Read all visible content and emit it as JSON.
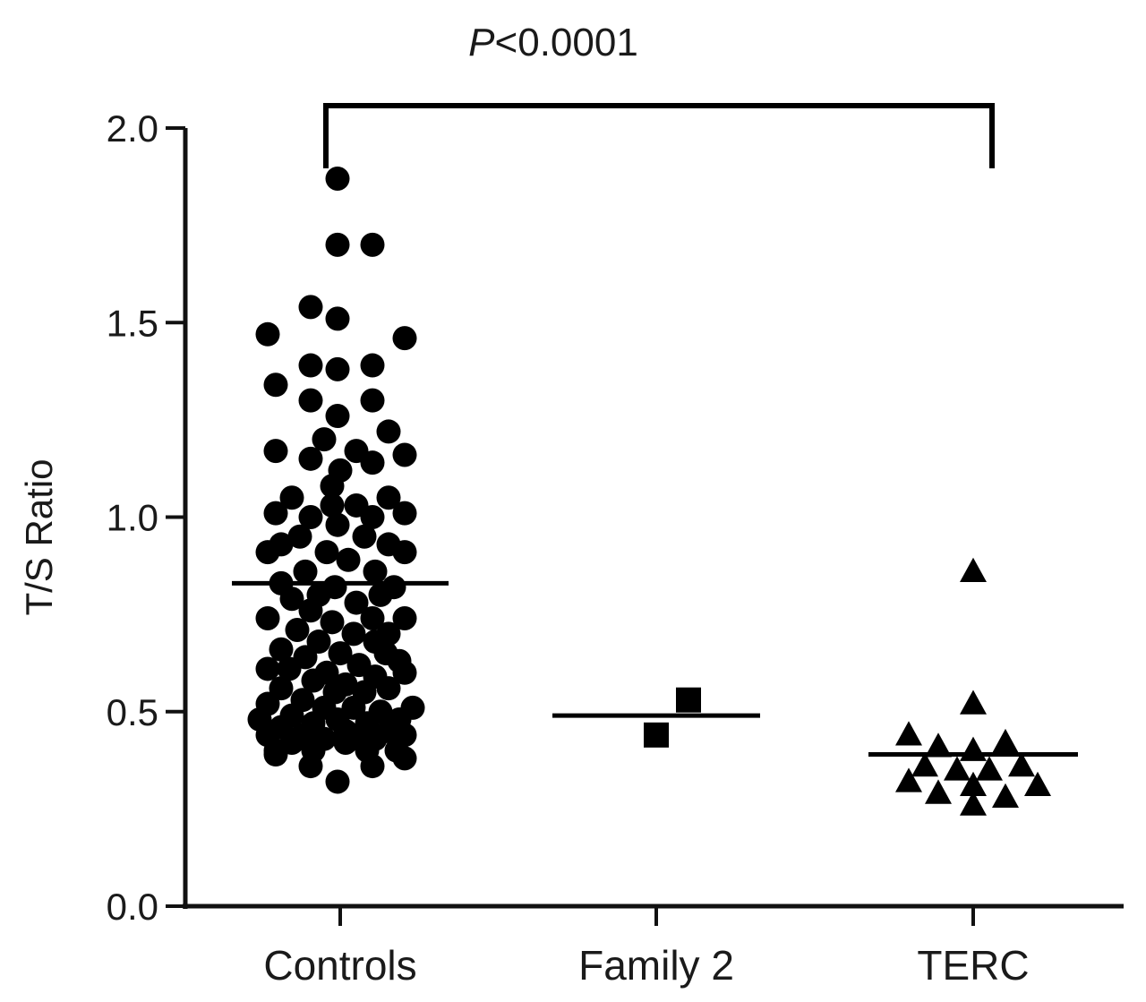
{
  "chart_data": {
    "type": "scatter",
    "subtype": "dot-plot with mean lines",
    "title": "",
    "xlabel": "",
    "ylabel": "T/S Ratio",
    "ylim": [
      0,
      2.0
    ],
    "yticks": [
      "0.0",
      "0.5",
      "1.0",
      "1.5",
      "2.0"
    ],
    "categories": [
      "Controls",
      "Family 2",
      "TERC"
    ],
    "annotation": {
      "prefix": "P",
      "text": "<0.0001",
      "between": [
        "Controls",
        "TERC"
      ]
    },
    "series": [
      {
        "name": "Controls",
        "marker": "circle",
        "mean": 0.83,
        "points": [
          [
            -0.01,
            1.87
          ],
          [
            -0.01,
            1.7
          ],
          [
            0.12,
            1.7
          ],
          [
            -0.11,
            1.54
          ],
          [
            -0.01,
            1.51
          ],
          [
            -0.27,
            1.47
          ],
          [
            0.24,
            1.46
          ],
          [
            -0.11,
            1.39
          ],
          [
            -0.01,
            1.38
          ],
          [
            0.12,
            1.39
          ],
          [
            -0.24,
            1.34
          ],
          [
            -0.11,
            1.3
          ],
          [
            0.12,
            1.3
          ],
          [
            -0.01,
            1.26
          ],
          [
            0.18,
            1.22
          ],
          [
            -0.06,
            1.2
          ],
          [
            -0.24,
            1.17
          ],
          [
            0.06,
            1.17
          ],
          [
            0.24,
            1.16
          ],
          [
            -0.11,
            1.15
          ],
          [
            0.12,
            1.14
          ],
          [
            0.0,
            1.12
          ],
          [
            -0.03,
            1.08
          ],
          [
            -0.18,
            1.05
          ],
          [
            0.18,
            1.05
          ],
          [
            -0.03,
            1.03
          ],
          [
            0.06,
            1.03
          ],
          [
            -0.24,
            1.01
          ],
          [
            0.24,
            1.01
          ],
          [
            -0.11,
            1.0
          ],
          [
            0.12,
            1.0
          ],
          [
            -0.01,
            0.98
          ],
          [
            -0.15,
            0.95
          ],
          [
            0.09,
            0.95
          ],
          [
            -0.22,
            0.93
          ],
          [
            0.18,
            0.93
          ],
          [
            -0.27,
            0.91
          ],
          [
            0.24,
            0.91
          ],
          [
            -0.05,
            0.91
          ],
          [
            0.03,
            0.89
          ],
          [
            -0.13,
            0.86
          ],
          [
            0.13,
            0.86
          ],
          [
            -0.22,
            0.83
          ],
          [
            0.2,
            0.82
          ],
          [
            -0.02,
            0.82
          ],
          [
            -0.08,
            0.8
          ],
          [
            0.15,
            0.8
          ],
          [
            -0.18,
            0.79
          ],
          [
            0.06,
            0.78
          ],
          [
            -0.11,
            0.76
          ],
          [
            -0.27,
            0.74
          ],
          [
            0.24,
            0.74
          ],
          [
            0.12,
            0.74
          ],
          [
            -0.03,
            0.73
          ],
          [
            -0.16,
            0.71
          ],
          [
            0.18,
            0.7
          ],
          [
            0.05,
            0.7
          ],
          [
            -0.08,
            0.68
          ],
          [
            0.13,
            0.68
          ],
          [
            -0.22,
            0.66
          ],
          [
            0.17,
            0.65
          ],
          [
            0.0,
            0.65
          ],
          [
            -0.13,
            0.64
          ],
          [
            0.22,
            0.63
          ],
          [
            0.07,
            0.62
          ],
          [
            -0.27,
            0.61
          ],
          [
            -0.19,
            0.61
          ],
          [
            0.24,
            0.6
          ],
          [
            -0.05,
            0.6
          ],
          [
            0.13,
            0.59
          ],
          [
            -0.1,
            0.58
          ],
          [
            0.02,
            0.57
          ],
          [
            -0.22,
            0.56
          ],
          [
            0.18,
            0.56
          ],
          [
            -0.02,
            0.55
          ],
          [
            0.09,
            0.55
          ],
          [
            -0.14,
            0.53
          ],
          [
            -0.27,
            0.52
          ],
          [
            0.27,
            0.51
          ],
          [
            -0.06,
            0.51
          ],
          [
            0.05,
            0.51
          ],
          [
            0.15,
            0.5
          ],
          [
            -0.18,
            0.49
          ],
          [
            -0.3,
            0.48
          ],
          [
            0.22,
            0.48
          ],
          [
            -0.01,
            0.48
          ],
          [
            0.1,
            0.47
          ],
          [
            -0.1,
            0.47
          ],
          [
            -0.22,
            0.46
          ],
          [
            0.18,
            0.45
          ],
          [
            0.02,
            0.45
          ],
          [
            -0.14,
            0.44
          ],
          [
            -0.27,
            0.44
          ],
          [
            0.24,
            0.44
          ],
          [
            0.07,
            0.44
          ],
          [
            -0.06,
            0.43
          ],
          [
            0.13,
            0.43
          ],
          [
            -0.18,
            0.42
          ],
          [
            0.02,
            0.42
          ],
          [
            -0.24,
            0.4
          ],
          [
            0.21,
            0.4
          ],
          [
            -0.1,
            0.4
          ],
          [
            0.1,
            0.4
          ],
          [
            -0.24,
            0.39
          ],
          [
            0.24,
            0.38
          ],
          [
            -0.11,
            0.36
          ],
          [
            0.12,
            0.36
          ],
          [
            -0.01,
            0.32
          ]
        ]
      },
      {
        "name": "Family 2",
        "marker": "square",
        "mean": 0.49,
        "points": [
          [
            0.12,
            0.53
          ],
          [
            0.0,
            0.44
          ]
        ]
      },
      {
        "name": "TERC",
        "marker": "triangle",
        "mean": 0.39,
        "points": [
          [
            0.0,
            0.86
          ],
          [
            0.0,
            0.52
          ],
          [
            -0.24,
            0.44
          ],
          [
            -0.13,
            0.41
          ],
          [
            0.12,
            0.42
          ],
          [
            0.0,
            0.4
          ],
          [
            -0.18,
            0.36
          ],
          [
            0.18,
            0.36
          ],
          [
            -0.06,
            0.35
          ],
          [
            0.06,
            0.35
          ],
          [
            -0.24,
            0.32
          ],
          [
            0.24,
            0.31
          ],
          [
            0.0,
            0.31
          ],
          [
            -0.13,
            0.29
          ],
          [
            0.12,
            0.28
          ],
          [
            0.0,
            0.26
          ]
        ]
      }
    ]
  }
}
